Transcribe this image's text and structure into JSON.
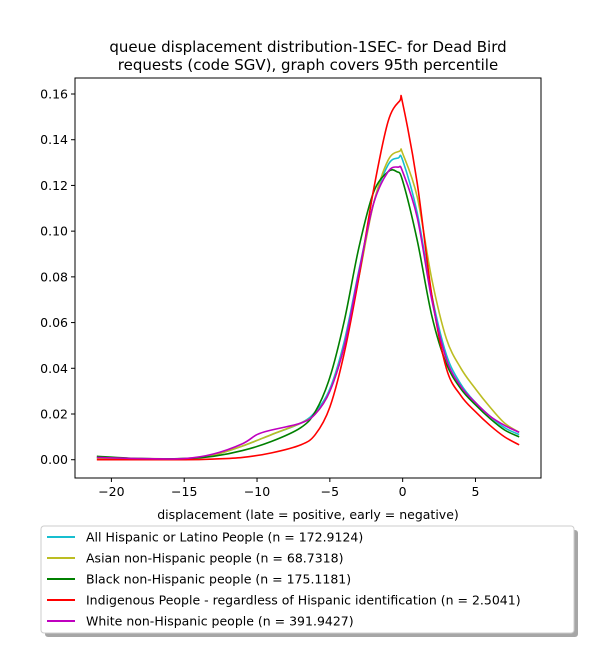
{
  "chart_data": {
    "type": "line",
    "title_lines": [
      "queue displacement distribution-1SEC-  for Dead Bird",
      "requests (code SGV), graph covers 95th percentile"
    ],
    "xlabel": "displacement (late = positive, early = negative)",
    "ylabel": "",
    "xlim": [
      -22.5,
      9.5
    ],
    "ylim": [
      -0.008,
      0.167
    ],
    "x_ticks": [
      -20,
      -15,
      -10,
      -5,
      0,
      5
    ],
    "x_tick_labels": [
      "−20",
      "−15",
      "−10",
      "−5",
      "0",
      "5"
    ],
    "y_ticks": [
      0.0,
      0.02,
      0.04,
      0.06,
      0.08,
      0.1,
      0.12,
      0.14,
      0.16
    ],
    "y_tick_labels": [
      "0.00",
      "0.02",
      "0.04",
      "0.06",
      "0.08",
      "0.10",
      "0.12",
      "0.14",
      "0.16"
    ],
    "grid": false,
    "legend_position": "below-plot",
    "series": [
      {
        "name": "All Hispanic or Latino People (n = 172.9124)",
        "color": "#17becf",
        "x": [
          -21,
          -18,
          -15,
          -13,
          -11,
          -9,
          -7,
          -6,
          -5,
          -4,
          -3,
          -2,
          -1,
          -0.3,
          0,
          1,
          2,
          3,
          4,
          5,
          6,
          7,
          8
        ],
        "y": [
          0.001,
          0.0005,
          0.0005,
          0.002,
          0.006,
          0.011,
          0.016,
          0.021,
          0.031,
          0.052,
          0.083,
          0.112,
          0.129,
          0.132,
          0.131,
          0.108,
          0.072,
          0.046,
          0.033,
          0.025,
          0.019,
          0.014,
          0.011
        ]
      },
      {
        "name": "Asian non-Hispanic people (n = 68.7318)",
        "color": "#bcbd22",
        "x": [
          -21,
          -18,
          -15,
          -13,
          -11,
          -9,
          -7,
          -6,
          -5,
          -4,
          -3,
          -2,
          -1,
          -0.2,
          0,
          1,
          2,
          3,
          4,
          5,
          6,
          7,
          8
        ],
        "y": [
          0.0005,
          0.0005,
          0.0005,
          0.002,
          0.006,
          0.011,
          0.016,
          0.02,
          0.03,
          0.05,
          0.08,
          0.112,
          0.131,
          0.135,
          0.134,
          0.115,
          0.079,
          0.053,
          0.04,
          0.031,
          0.023,
          0.016,
          0.012
        ]
      },
      {
        "name": "Black non-Hispanic people (n = 175.1181)",
        "color": "#008000",
        "x": [
          -21,
          -18,
          -15,
          -13,
          -11,
          -9,
          -7,
          -6,
          -5,
          -4,
          -3,
          -2,
          -1,
          -0.4,
          0,
          1,
          2,
          3,
          4,
          5,
          6,
          7,
          8
        ],
        "y": [
          0.0015,
          0.0005,
          0.0005,
          0.0015,
          0.004,
          0.008,
          0.014,
          0.021,
          0.036,
          0.061,
          0.093,
          0.117,
          0.126,
          0.126,
          0.122,
          0.096,
          0.063,
          0.042,
          0.031,
          0.024,
          0.018,
          0.013,
          0.01
        ]
      },
      {
        "name": "Indigenous People - regardless of Hispanic identification (n = 2.5041)",
        "color": "#ff0000",
        "x": [
          -21,
          -18,
          -15,
          -13,
          -11,
          -9,
          -7,
          -6,
          -5,
          -4,
          -3,
          -2,
          -1,
          -0.2,
          0,
          1,
          2,
          3,
          4,
          5,
          6,
          7,
          8
        ],
        "y": [
          0.0,
          0.0,
          0.0,
          0.0003,
          0.001,
          0.003,
          0.0065,
          0.011,
          0.023,
          0.047,
          0.08,
          0.118,
          0.148,
          0.157,
          0.156,
          0.121,
          0.072,
          0.04,
          0.028,
          0.021,
          0.015,
          0.01,
          0.0065
        ]
      },
      {
        "name": "White non-Hispanic people (n = 391.9427)",
        "color": "#bf00bf",
        "x": [
          -21,
          -18,
          -15,
          -13,
          -11,
          -10,
          -9,
          -7,
          -6,
          -5,
          -4,
          -3,
          -2,
          -1,
          -0.3,
          0,
          1,
          2,
          3,
          4,
          5,
          6,
          7,
          8
        ],
        "y": [
          0.001,
          0.0005,
          0.0005,
          0.0025,
          0.007,
          0.011,
          0.013,
          0.016,
          0.02,
          0.03,
          0.05,
          0.082,
          0.112,
          0.126,
          0.128,
          0.126,
          0.106,
          0.07,
          0.044,
          0.032,
          0.025,
          0.019,
          0.015,
          0.012
        ]
      }
    ]
  }
}
